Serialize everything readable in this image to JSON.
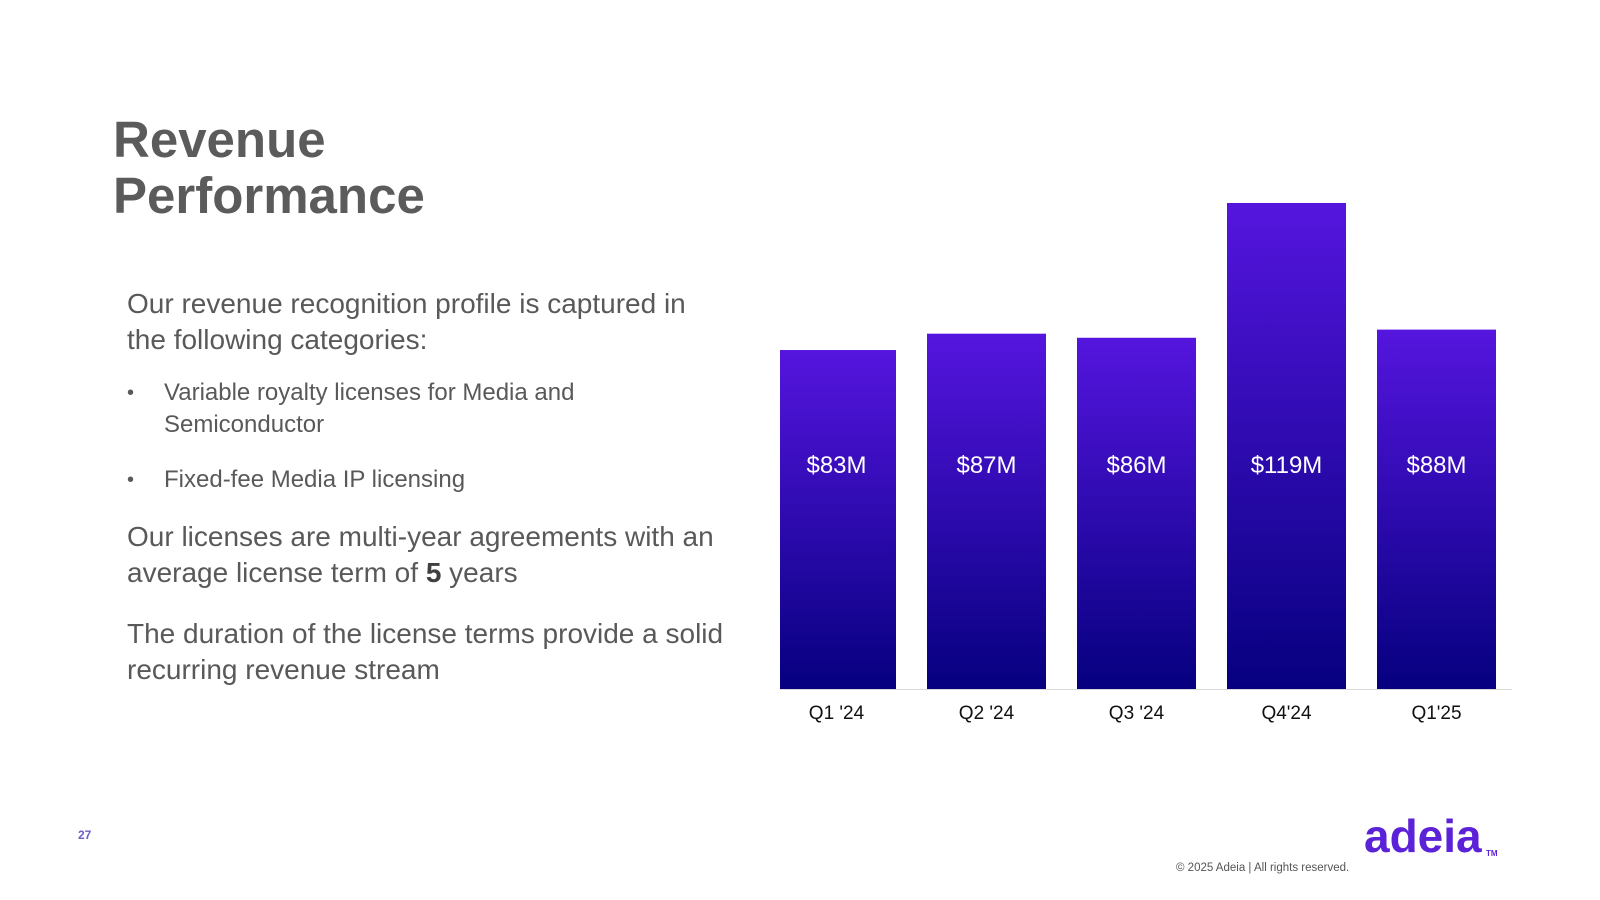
{
  "slide": {
    "title_line1": "Revenue",
    "title_line2": "Performance",
    "intro": "Our revenue recognition profile is captured in the following categories:",
    "bullets": [
      "Variable royalty licenses for Media and Semiconductor",
      "Fixed-fee Media IP licensing"
    ],
    "para2_before": "Our licenses are multi-year agreements with an average license term of ",
    "para2_bold": "5",
    "para2_after": " years",
    "para3": "The duration of the license terms provide a solid recurring revenue stream",
    "page_number": "27",
    "copyright": "© 2025 Adeia | All rights reserved.",
    "logo_text": "adeia",
    "logo_tm": "TM"
  },
  "colors": {
    "bar_top": "#5515DE",
    "bar_bottom": "#06007F",
    "title": "#5B5B5B",
    "brand": "#5B22D8"
  },
  "chart_data": {
    "type": "bar",
    "categories": [
      "Q1 '24",
      "Q2 '24",
      "Q3 '24",
      "Q4'24",
      "Q1'25"
    ],
    "values": [
      83,
      87,
      86,
      119,
      88
    ],
    "data_labels": [
      "$83M",
      "$87M",
      "$86M",
      "$119M",
      "$88M"
    ],
    "unit": "$M",
    "title": "",
    "xlabel": "",
    "ylabel": "",
    "ylim": [
      0,
      119
    ],
    "grid": false,
    "legend": "none"
  }
}
